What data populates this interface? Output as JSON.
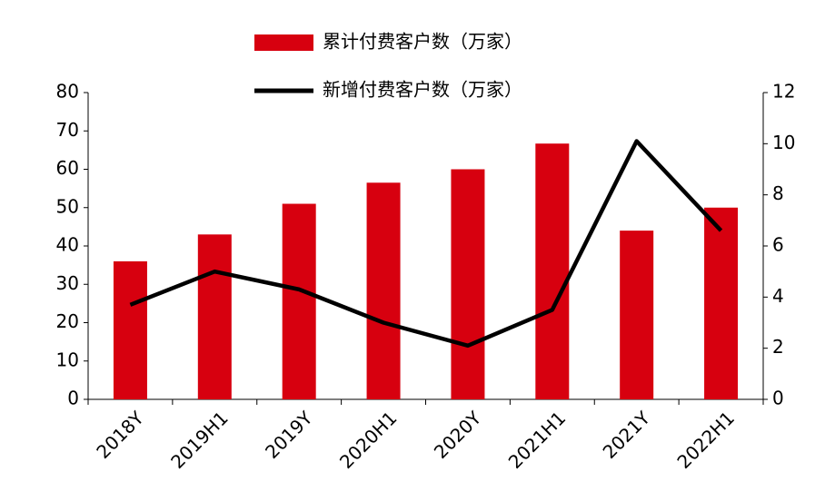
{
  "chart_data": {
    "type": "bar",
    "categories": [
      "2018Y",
      "2019H1",
      "2019Y",
      "2020H1",
      "2020Y",
      "2021H1",
      "2021Y",
      "2022H1"
    ],
    "series": [
      {
        "name": "累计付费客户数（万家）",
        "type": "bar",
        "color": "#d7000f",
        "values": [
          36,
          43,
          51,
          56.5,
          60,
          66.7,
          44,
          50
        ]
      },
      {
        "name": "新增付费客户数（万家）",
        "type": "line",
        "axis": "y2",
        "color": "#000000",
        "values": [
          3.7,
          5.0,
          4.3,
          3.0,
          2.1,
          3.5,
          10.1,
          6.6
        ]
      }
    ],
    "ylim": [
      0,
      80
    ],
    "yticks": [
      0,
      10,
      20,
      30,
      40,
      50,
      60,
      70,
      80
    ],
    "y2lim": [
      0,
      12
    ],
    "y2ticks": [
      0,
      2,
      4,
      6,
      8,
      10,
      12
    ],
    "legend": "top"
  }
}
